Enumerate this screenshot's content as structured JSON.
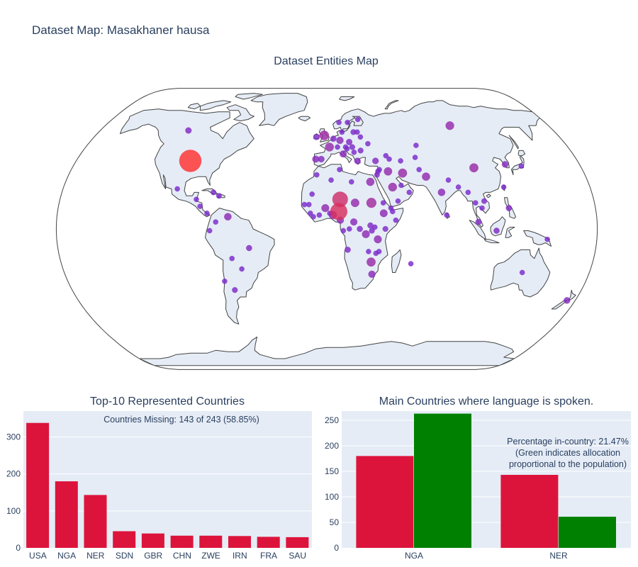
{
  "title": "Dataset Map: Masakhaner hausa",
  "colors": {
    "bar_red": "#dc143c",
    "bar_green": "#008000",
    "plot_bg": "#e5ecf6",
    "land": "#e5ecf6",
    "coast": "#444444",
    "text": "#2a3f5f"
  },
  "chart_data": [
    {
      "type": "scatter",
      "title": "Dataset Entities Map",
      "projection": "natural earth",
      "markers": [
        {
          "lon": -98,
          "lat": 39,
          "size": 338
        },
        {
          "lon": 8,
          "lat": 10,
          "size": 180
        },
        {
          "lon": 9,
          "lat": 17,
          "size": 143
        },
        {
          "lon": 30,
          "lat": 15,
          "size": 45
        },
        {
          "lon": -2,
          "lat": 54,
          "size": 39
        },
        {
          "lon": 104,
          "lat": 35,
          "size": 33
        },
        {
          "lon": 30,
          "lat": -19,
          "size": 33
        },
        {
          "lon": 53,
          "lat": 32,
          "size": 32
        },
        {
          "lon": 2,
          "lat": 47,
          "size": 30
        },
        {
          "lon": 45,
          "lat": 24,
          "size": 29
        },
        {
          "lon": 100,
          "lat": 60,
          "size": 28
        },
        {
          "lon": 19,
          "lat": 15,
          "size": 27
        },
        {
          "lon": 43,
          "lat": 33,
          "size": 26
        },
        {
          "lon": 30,
          "lat": 27,
          "size": 24
        },
        {
          "lon": 69,
          "lat": 30,
          "size": 24
        },
        {
          "lon": 4,
          "lat": 8,
          "size": 24
        },
        {
          "lon": -1,
          "lat": 12,
          "size": 22
        },
        {
          "lon": 34,
          "lat": -6,
          "size": 22
        },
        {
          "lon": 26,
          "lat": -3,
          "size": 21
        },
        {
          "lon": 38,
          "lat": 9,
          "size": 20
        },
        {
          "lon": 78,
          "lat": 21,
          "size": 18
        },
        {
          "lon": -66,
          "lat": 7,
          "size": 18
        },
        {
          "lon": 10,
          "lat": 51,
          "size": 17
        },
        {
          "lon": 18,
          "lat": 4,
          "size": 16
        },
        {
          "lon": 31,
          "lat": -26,
          "size": 16
        },
        {
          "lon": 9,
          "lat": 5,
          "size": 16
        },
        {
          "lon": 12,
          "lat": 43,
          "size": 15
        },
        {
          "lon": -8,
          "lat": 40,
          "size": 15
        },
        {
          "lon": 174,
          "lat": -41,
          "size": 12
        },
        {
          "lon": 127,
          "lat": 37,
          "size": 12
        },
        {
          "lon": -4,
          "lat": 40,
          "size": 11
        },
        {
          "lon": 22,
          "lat": 39,
          "size": 11
        },
        {
          "lon": 35,
          "lat": 39,
          "size": 11
        },
        {
          "lon": 17,
          "lat": 50,
          "size": 10
        },
        {
          "lon": -110,
          "lat": 57,
          "size": 10
        },
        {
          "lon": -8,
          "lat": 53,
          "size": 9
        },
        {
          "lon": 101,
          "lat": 4,
          "size": 9
        },
        {
          "lon": 122,
          "lat": 12,
          "size": 9
        },
        {
          "lon": 5,
          "lat": 52,
          "size": 9
        },
        {
          "lon": 113,
          "lat": -1,
          "size": 8
        },
        {
          "lon": -52,
          "lat": -11,
          "size": 8
        },
        {
          "lon": 22,
          "lat": 0,
          "size": 8
        },
        {
          "lon": 29,
          "lat": 2,
          "size": 8
        },
        {
          "lon": 14,
          "lat": -12,
          "size": 8
        },
        {
          "lon": 21,
          "lat": 56,
          "size": 7
        },
        {
          "lon": -65,
          "lat": -35,
          "size": 7
        },
        {
          "lon": 39,
          "lat": 0,
          "size": 7
        },
        {
          "lon": 30,
          "lat": -1,
          "size": 7
        },
        {
          "lon": 25,
          "lat": 45,
          "size": 7
        },
        {
          "lon": 19,
          "lat": 47,
          "size": 7
        },
        {
          "lon": -77,
          "lat": 21,
          "size": 6
        },
        {
          "lon": -73,
          "lat": 19,
          "size": 6
        },
        {
          "lon": 106,
          "lat": 16,
          "size": 6
        },
        {
          "lon": 36,
          "lat": 33,
          "size": 6
        },
        {
          "lon": 35,
          "lat": 31,
          "size": 6
        },
        {
          "lon": 37,
          "lat": 34,
          "size": 5
        },
        {
          "lon": 12,
          "lat": 56,
          "size": 5
        },
        {
          "lon": 10,
          "lat": 62,
          "size": 5
        },
        {
          "lon": 17,
          "lat": 62,
          "size": 5
        },
        {
          "lon": 26,
          "lat": 64,
          "size": 5
        },
        {
          "lon": 26,
          "lat": 53,
          "size": 5
        },
        {
          "lon": 24,
          "lat": 56,
          "size": 5
        },
        {
          "lon": 31,
          "lat": 49,
          "size": 5
        },
        {
          "lon": 44,
          "lat": 10,
          "size": 5
        },
        {
          "lon": 46,
          "lat": 5,
          "size": 5
        },
        {
          "lon": 38,
          "lat": 15,
          "size": 5
        },
        {
          "lon": 43,
          "lat": 12,
          "size": 5
        },
        {
          "lon": 48,
          "lat": 16,
          "size": 5
        },
        {
          "lon": 51,
          "lat": 25,
          "size": 5
        },
        {
          "lon": 56,
          "lat": 21,
          "size": 5
        },
        {
          "lon": 57,
          "lat": -20,
          "size": 5
        },
        {
          "lon": 15,
          "lat": 0,
          "size": 5
        },
        {
          "lon": 11,
          "lat": -1,
          "size": 5
        },
        {
          "lon": 2,
          "lat": 9,
          "size": 5
        },
        {
          "lon": -11,
          "lat": 9,
          "size": 5
        },
        {
          "lon": -12,
          "lat": 14,
          "size": 5
        },
        {
          "lon": -9,
          "lat": 7,
          "size": 5
        },
        {
          "lon": -5,
          "lat": 8,
          "size": 5
        },
        {
          "lon": -10,
          "lat": 20,
          "size": 5
        },
        {
          "lon": -15,
          "lat": 14,
          "size": 5
        },
        {
          "lon": 32,
          "lat": 1,
          "size": 5
        },
        {
          "lon": 35,
          "lat": -13,
          "size": 5
        },
        {
          "lon": 33,
          "lat": -14,
          "size": 5
        },
        {
          "lon": 28,
          "lat": -13,
          "size": 5
        },
        {
          "lon": -74,
          "lat": 4,
          "size": 5
        },
        {
          "lon": -78,
          "lat": -1,
          "size": 5
        },
        {
          "lon": -71,
          "lat": -30,
          "size": 5
        },
        {
          "lon": 134,
          "lat": -25,
          "size": 5
        },
        {
          "lon": 138,
          "lat": 36,
          "size": 5
        },
        {
          "lon": 100,
          "lat": 15,
          "size": 5
        },
        {
          "lon": 84,
          "lat": 28,
          "size": 5
        },
        {
          "lon": 90,
          "lat": 24,
          "size": 5
        },
        {
          "lon": 96,
          "lat": 21,
          "size": 5
        },
        {
          "lon": 80,
          "lat": 8,
          "size": 5
        },
        {
          "lon": 65,
          "lat": 34,
          "size": 5
        },
        {
          "lon": 67,
          "lat": 48,
          "size": 5
        },
        {
          "lon": 53,
          "lat": 39,
          "size": 5
        },
        {
          "lon": 64,
          "lat": 41,
          "size": 5
        },
        {
          "lon": 45,
          "lat": 40,
          "size": 5
        },
        {
          "lon": 43,
          "lat": 42,
          "size": 5
        },
        {
          "lon": 104,
          "lat": 12,
          "size": 5
        },
        {
          "lon": 121,
          "lat": 24,
          "size": 5
        },
        {
          "lon": 147,
          "lat": -6,
          "size": 5
        },
        {
          "lon": 8,
          "lat": 47,
          "size": 5
        },
        {
          "lon": 14,
          "lat": 47,
          "size": 5
        },
        {
          "lon": 15,
          "lat": 46,
          "size": 5
        },
        {
          "lon": 20,
          "lat": 44,
          "size": 5
        },
        {
          "lon": 9,
          "lat": 34,
          "size": 5
        },
        {
          "lon": 3,
          "lat": 28,
          "size": 5
        },
        {
          "lon": 17,
          "lat": 27,
          "size": 5
        },
        {
          "lon": -7,
          "lat": 31,
          "size": 5
        },
        {
          "lon": -88,
          "lat": 17,
          "size": 5
        },
        {
          "lon": -85,
          "lat": 13,
          "size": 5
        },
        {
          "lon": -80,
          "lat": 9,
          "size": 5
        },
        {
          "lon": -102,
          "lat": 23,
          "size": 5
        },
        {
          "lon": -58,
          "lat": -23,
          "size": 5
        },
        {
          "lon": -64,
          "lat": -17,
          "size": 5
        }
      ]
    },
    {
      "type": "bar",
      "title": "Top-10 Represented Countries",
      "annotation": "Countries Missing: 143 of 243 (58.85%)",
      "categories": [
        "USA",
        "NGA",
        "NER",
        "SDN",
        "GBR",
        "CHN",
        "ZWE",
        "IRN",
        "FRA",
        "SAU"
      ],
      "values": [
        338,
        180,
        143,
        45,
        39,
        33,
        33,
        32,
        30,
        29
      ],
      "ylim": [
        0,
        370
      ],
      "yticks": [
        0,
        100,
        200,
        300
      ]
    },
    {
      "type": "bar",
      "title": "Main Countries where language is spoken.",
      "annotation": "Percentage in-country: 21.47%\n(Green indicates allocation\nproportional to the population)",
      "categories": [
        "NGA",
        "NER"
      ],
      "series": [
        {
          "values": [
            180,
            143
          ]
        },
        {
          "values": [
            263,
            61
          ]
        }
      ],
      "ylim": [
        0,
        268
      ],
      "yticks": [
        0,
        50,
        100,
        150,
        200,
        250
      ]
    }
  ]
}
